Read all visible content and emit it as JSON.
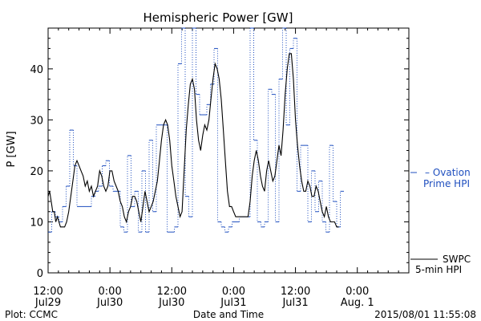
{
  "chart_data": {
    "type": "line",
    "title": "Hemispheric Power [GW]",
    "xlabel": "Date and Time",
    "ylabel": "P [GW]",
    "ylim": [
      0,
      48
    ],
    "xlim_hours": [
      0,
      70
    ],
    "y_ticks": [
      0,
      10,
      20,
      30,
      40
    ],
    "x_ticks": [
      {
        "h": 0,
        "line1": "12:00",
        "line2": "Jul29"
      },
      {
        "h": 12,
        "line1": "0:00",
        "line2": "Jul30"
      },
      {
        "h": 24,
        "line1": "12:00",
        "line2": "Jul30"
      },
      {
        "h": 36,
        "line1": "0:00",
        "line2": "Jul31"
      },
      {
        "h": 48,
        "line1": "12:00",
        "line2": "Jul31"
      },
      {
        "h": 60,
        "line1": "0:00",
        "line2": "Aug. 1"
      }
    ],
    "grid": false,
    "series": [
      {
        "name": "Ovation Prime HPI",
        "color": "#1f4fbf",
        "style": "dotted-step",
        "points": [
          [
            0,
            8
          ],
          [
            0.7,
            12
          ],
          [
            1.4,
            11
          ],
          [
            2.1,
            10
          ],
          [
            2.8,
            13
          ],
          [
            3.5,
            17
          ],
          [
            4.2,
            28
          ],
          [
            4.9,
            21
          ],
          [
            5.6,
            13
          ],
          [
            6.3,
            13
          ],
          [
            7.0,
            13
          ],
          [
            7.7,
            13
          ],
          [
            8.4,
            15
          ],
          [
            9.1,
            16
          ],
          [
            9.8,
            17
          ],
          [
            10.5,
            21
          ],
          [
            11.2,
            22
          ],
          [
            11.9,
            17
          ],
          [
            12.6,
            16
          ],
          [
            13.3,
            16
          ],
          [
            14.0,
            9
          ],
          [
            14.7,
            8
          ],
          [
            15.4,
            23
          ],
          [
            16.1,
            13
          ],
          [
            16.8,
            16
          ],
          [
            17.5,
            8
          ],
          [
            18.2,
            20
          ],
          [
            18.9,
            8
          ],
          [
            19.6,
            26
          ],
          [
            20.3,
            12
          ],
          [
            21.0,
            29
          ],
          [
            21.7,
            29
          ],
          [
            22.4,
            29
          ],
          [
            23.1,
            8
          ],
          [
            23.8,
            8
          ],
          [
            24.5,
            9
          ],
          [
            25.2,
            41
          ],
          [
            25.9,
            48
          ],
          [
            26.6,
            15
          ],
          [
            27.3,
            11
          ],
          [
            28.0,
            48
          ],
          [
            28.7,
            35
          ],
          [
            29.4,
            31
          ],
          [
            30.1,
            31
          ],
          [
            30.8,
            33
          ],
          [
            31.5,
            37
          ],
          [
            32.2,
            44
          ],
          [
            32.9,
            10
          ],
          [
            33.6,
            9
          ],
          [
            34.3,
            8
          ],
          [
            35.0,
            9
          ],
          [
            35.7,
            10
          ],
          [
            36.4,
            10
          ],
          [
            37.1,
            11
          ],
          [
            37.8,
            11
          ],
          [
            38.5,
            11
          ],
          [
            39.2,
            48
          ],
          [
            39.9,
            26
          ],
          [
            40.6,
            10
          ],
          [
            41.3,
            9
          ],
          [
            42.0,
            10
          ],
          [
            42.7,
            36
          ],
          [
            43.4,
            35
          ],
          [
            44.1,
            10
          ],
          [
            44.8,
            38
          ],
          [
            45.5,
            48
          ],
          [
            46.2,
            29
          ],
          [
            46.9,
            44
          ],
          [
            47.6,
            46
          ],
          [
            48.3,
            16
          ],
          [
            49.0,
            25
          ],
          [
            49.7,
            25
          ],
          [
            50.4,
            10
          ],
          [
            51.1,
            20
          ],
          [
            51.8,
            12
          ],
          [
            52.5,
            18
          ],
          [
            53.2,
            10
          ],
          [
            53.9,
            8
          ],
          [
            54.6,
            25
          ],
          [
            55.3,
            14
          ],
          [
            56.0,
            9
          ],
          [
            56.7,
            16
          ]
        ]
      },
      {
        "name": "SWPC 5-min HPI",
        "color": "#000000",
        "style": "line",
        "points": [
          [
            0,
            15
          ],
          [
            0.3,
            16
          ],
          [
            0.6,
            14
          ],
          [
            0.9,
            12
          ],
          [
            1.2,
            12
          ],
          [
            1.5,
            10
          ],
          [
            1.8,
            11
          ],
          [
            2.1,
            10
          ],
          [
            2.4,
            9
          ],
          [
            2.8,
            9
          ],
          [
            3.2,
            9
          ],
          [
            3.6,
            10
          ],
          [
            4.0,
            12
          ],
          [
            4.4,
            15
          ],
          [
            4.8,
            18
          ],
          [
            5.2,
            21
          ],
          [
            5.6,
            22
          ],
          [
            6.0,
            21
          ],
          [
            6.4,
            20
          ],
          [
            6.8,
            19
          ],
          [
            7.2,
            17
          ],
          [
            7.6,
            18
          ],
          [
            8.0,
            16
          ],
          [
            8.4,
            17
          ],
          [
            8.8,
            15
          ],
          [
            9.2,
            16
          ],
          [
            9.6,
            17
          ],
          [
            10.0,
            20
          ],
          [
            10.4,
            19
          ],
          [
            10.8,
            17
          ],
          [
            11.2,
            16
          ],
          [
            11.6,
            17
          ],
          [
            12.0,
            20
          ],
          [
            12.4,
            20
          ],
          [
            12.8,
            18
          ],
          [
            13.2,
            17
          ],
          [
            13.6,
            16
          ],
          [
            14.0,
            14
          ],
          [
            14.4,
            13
          ],
          [
            14.8,
            11
          ],
          [
            15.2,
            10
          ],
          [
            15.6,
            12
          ],
          [
            16.0,
            13
          ],
          [
            16.4,
            15
          ],
          [
            16.8,
            15
          ],
          [
            17.2,
            14
          ],
          [
            17.6,
            12
          ],
          [
            18.0,
            10
          ],
          [
            18.4,
            13
          ],
          [
            18.8,
            16
          ],
          [
            19.2,
            14
          ],
          [
            19.6,
            12
          ],
          [
            20.0,
            13
          ],
          [
            20.4,
            14
          ],
          [
            20.8,
            16
          ],
          [
            21.2,
            18
          ],
          [
            21.6,
            22
          ],
          [
            22.0,
            26
          ],
          [
            22.4,
            29
          ],
          [
            22.8,
            30
          ],
          [
            23.2,
            29
          ],
          [
            23.6,
            26
          ],
          [
            24.0,
            21
          ],
          [
            24.4,
            18
          ],
          [
            24.8,
            15
          ],
          [
            25.2,
            13
          ],
          [
            25.6,
            11
          ],
          [
            26.0,
            12
          ],
          [
            26.4,
            20
          ],
          [
            26.8,
            28
          ],
          [
            27.2,
            33
          ],
          [
            27.6,
            37
          ],
          [
            28.0,
            38
          ],
          [
            28.4,
            36
          ],
          [
            28.8,
            30
          ],
          [
            29.2,
            26
          ],
          [
            29.6,
            24
          ],
          [
            30.0,
            27
          ],
          [
            30.4,
            29
          ],
          [
            30.8,
            28
          ],
          [
            31.2,
            30
          ],
          [
            31.6,
            34
          ],
          [
            32.0,
            38
          ],
          [
            32.4,
            41
          ],
          [
            32.8,
            40
          ],
          [
            33.2,
            38
          ],
          [
            33.6,
            34
          ],
          [
            34.0,
            28
          ],
          [
            34.4,
            22
          ],
          [
            34.8,
            16
          ],
          [
            35.2,
            13
          ],
          [
            35.6,
            13
          ],
          [
            36.0,
            12
          ],
          [
            36.4,
            11
          ],
          [
            36.8,
            11
          ],
          [
            37.2,
            11
          ],
          [
            37.6,
            11
          ],
          [
            38.0,
            11
          ],
          [
            38.4,
            11
          ],
          [
            38.8,
            11
          ],
          [
            39.2,
            14
          ],
          [
            39.6,
            19
          ],
          [
            40.0,
            22
          ],
          [
            40.4,
            24
          ],
          [
            40.8,
            22
          ],
          [
            41.2,
            19
          ],
          [
            41.6,
            17
          ],
          [
            42.0,
            16
          ],
          [
            42.4,
            20
          ],
          [
            42.8,
            22
          ],
          [
            43.2,
            20
          ],
          [
            43.6,
            18
          ],
          [
            44.0,
            19
          ],
          [
            44.4,
            22
          ],
          [
            44.8,
            25
          ],
          [
            45.2,
            23
          ],
          [
            45.6,
            28
          ],
          [
            46.0,
            35
          ],
          [
            46.4,
            40
          ],
          [
            46.8,
            43
          ],
          [
            47.2,
            43
          ],
          [
            47.6,
            38
          ],
          [
            48.0,
            30
          ],
          [
            48.4,
            25
          ],
          [
            48.8,
            21
          ],
          [
            49.2,
            18
          ],
          [
            49.6,
            16
          ],
          [
            50.0,
            16
          ],
          [
            50.4,
            18
          ],
          [
            50.8,
            17
          ],
          [
            51.2,
            15
          ],
          [
            51.6,
            15
          ],
          [
            52.0,
            17
          ],
          [
            52.4,
            16
          ],
          [
            52.8,
            14
          ],
          [
            53.2,
            12
          ],
          [
            53.6,
            11
          ],
          [
            54.0,
            13
          ],
          [
            54.4,
            11
          ],
          [
            54.8,
            10
          ],
          [
            55.2,
            10
          ],
          [
            55.6,
            10
          ],
          [
            56.0,
            9
          ],
          [
            56.4,
            9
          ]
        ]
      }
    ]
  },
  "legend": {
    "ovation_line1": "– Ovation",
    "ovation_line2": "Prime HPI",
    "swpc_line1": "SWPC",
    "swpc_line2": "5-min HPI"
  },
  "footer": {
    "left": "Plot: CCMC",
    "center": "Date and Time",
    "right": "2015/08/01 11:55:08"
  }
}
